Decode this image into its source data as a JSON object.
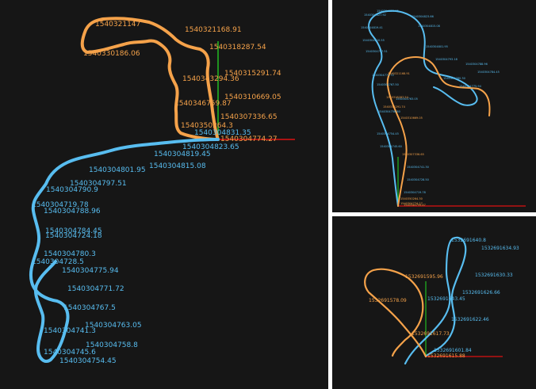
{
  "colors": {
    "background": "#161616",
    "orange_trajectory": "#f5a24a",
    "blue_trajectory": "#58bdf0",
    "x_axis": "#dd1111",
    "y_axis": "#22bb22"
  },
  "main_view": {
    "orange_labels": [
      "1540321168.91",
      "1540318287.54",
      "1540315291.74",
      "1540310669.05",
      "1540307336.65",
      "1540346759.87",
      "1540343294.36",
      "1540350264.3",
      "1540304774.27",
      "1540330186.06",
      "1540321147"
    ],
    "blue_labels": [
      "1540304831.35",
      "1540304823.65",
      "1540304819.45",
      "1540304815.08",
      "1540304801.95",
      "1540304797.51",
      "1540304790.9",
      "1540304719.78",
      "1540304788.96",
      "1540304784.45",
      "1540304724.18",
      "1540304780.3",
      "1540304728.5",
      "1540304775.94",
      "1540304771.72",
      "1540304767.5",
      "1540304763.05",
      "1540304741.3",
      "1540304758.8",
      "1540304745.6",
      "1540304754.45"
    ]
  },
  "top_right_view": {
    "blue_label_count": 22,
    "orange_label_count": 8
  },
  "bottom_right_view": {
    "blue_labels": [
      "1532691640.8",
      "1532691634.93",
      "1532691630.33",
      "1532691626.66",
      "1532691643.45",
      "1532691622.46",
      "1532691601.84"
    ],
    "orange_labels": [
      "1532691595.96",
      "1532691578.09",
      "1532691617.73",
      "1532691615.88"
    ]
  }
}
